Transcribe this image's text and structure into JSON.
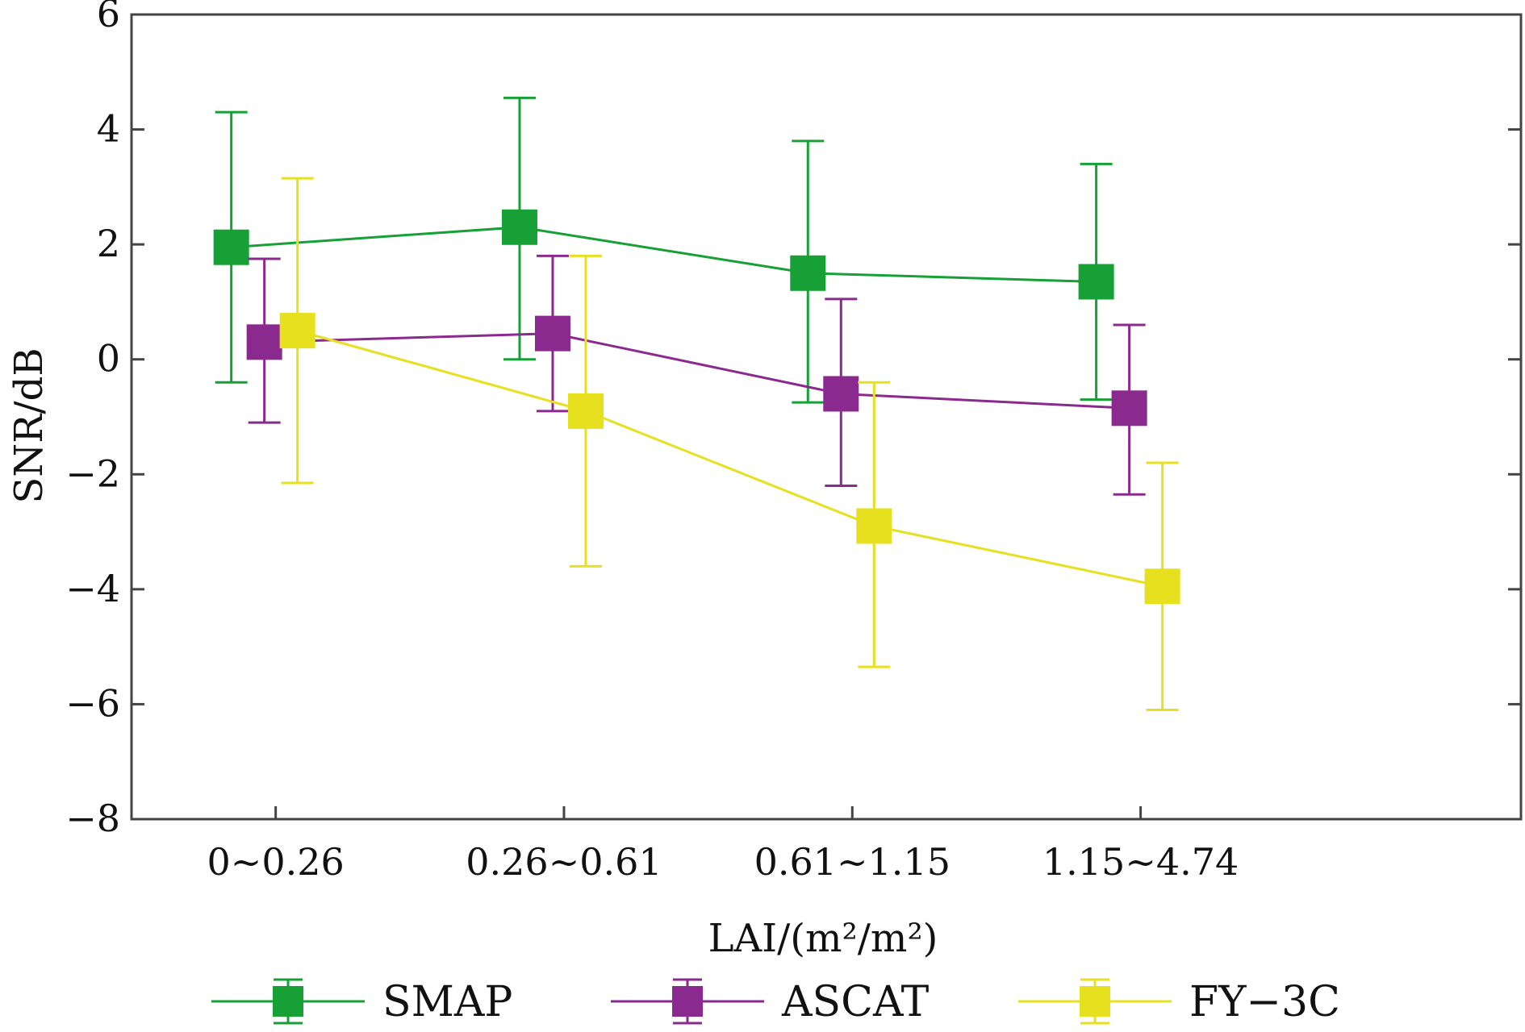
{
  "chart_data": {
    "type": "line",
    "xlabel": "LAI/(m²/m²)",
    "ylabel": "SNR/dB",
    "ylim": [
      -8,
      6
    ],
    "yticks": [
      6,
      4,
      2,
      0,
      -2,
      -4,
      -6,
      -8
    ],
    "ytick_labels": [
      "6",
      "4",
      "2",
      "0",
      "−2",
      "−4",
      "−6",
      "−8"
    ],
    "categories": [
      "0~0.26",
      "0.26~0.61",
      "0.61~1.15",
      "1.15~4.74"
    ],
    "grid": false,
    "legend_position": "bottom",
    "series": [
      {
        "name": "SMAP",
        "color": "#17a035",
        "values": [
          1.95,
          2.3,
          1.5,
          1.35
        ],
        "err_low": [
          -0.4,
          0.0,
          -0.75,
          -0.7
        ],
        "err_high": [
          4.3,
          4.55,
          3.8,
          3.4
        ]
      },
      {
        "name": "ASCAT",
        "color": "#8b2a8e",
        "values": [
          0.3,
          0.45,
          -0.6,
          -0.85
        ],
        "err_low": [
          -1.1,
          -0.9,
          -2.2,
          -2.35
        ],
        "err_high": [
          1.75,
          1.8,
          1.05,
          0.6
        ]
      },
      {
        "name": "FY−3C",
        "color": "#e6e01f",
        "values": [
          0.5,
          -0.9,
          -2.9,
          -3.95
        ],
        "err_low": [
          -2.15,
          -3.6,
          -5.35,
          -6.1
        ],
        "err_high": [
          3.15,
          1.8,
          -0.4,
          -1.8
        ]
      }
    ]
  }
}
